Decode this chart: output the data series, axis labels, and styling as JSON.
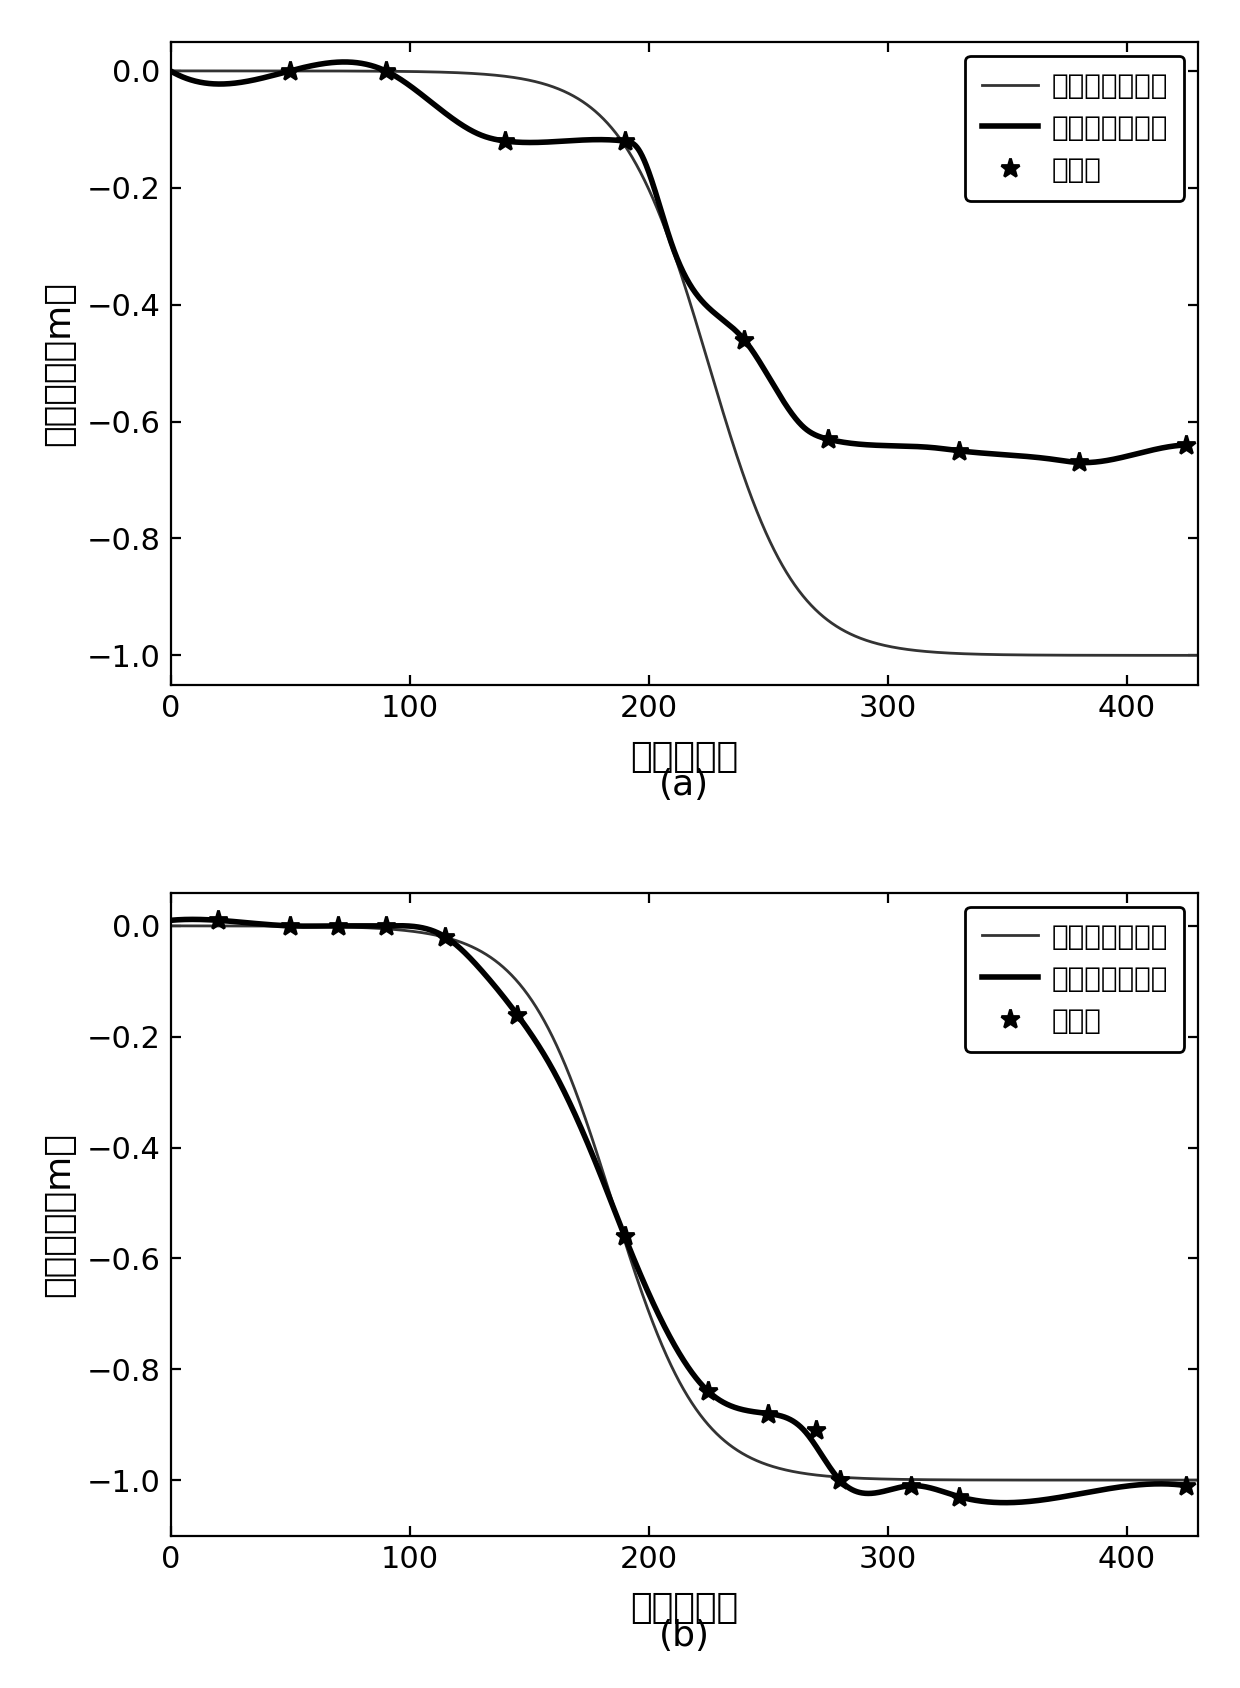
{
  "subplot_a": {
    "title": "(a)",
    "xlabel": "时间（天）",
    "ylabel": "时序沉降（m）",
    "xlim": [
      0,
      430
    ],
    "ylim": [
      -1.05,
      0.05
    ],
    "yticks": [
      0.0,
      -0.2,
      -0.4,
      -0.6,
      -0.8,
      -1.0
    ],
    "xticks": [
      0,
      100,
      200,
      300,
      400
    ],
    "sim_k": 0.055,
    "sim_mid": 225,
    "sim_max": -1.0,
    "calc_ctrl_x": [
      0,
      50,
      90,
      130,
      140,
      165,
      190,
      195,
      210,
      240,
      265,
      275,
      320,
      330,
      370,
      380,
      415,
      425
    ],
    "calc_ctrl_y": [
      0.0,
      0.0,
      0.0,
      -0.11,
      -0.12,
      -0.12,
      -0.12,
      -0.13,
      -0.3,
      -0.46,
      -0.61,
      -0.63,
      -0.645,
      -0.65,
      -0.665,
      -0.67,
      -0.645,
      -0.64
    ],
    "obs_x": [
      50,
      90,
      140,
      190,
      240,
      275,
      330,
      380,
      425
    ],
    "obs_y": [
      0.0,
      0.0,
      -0.12,
      -0.12,
      -0.46,
      -0.63,
      -0.65,
      -0.67,
      -0.64
    ]
  },
  "subplot_b": {
    "title": "(b)",
    "xlabel": "时间（天）",
    "ylabel": "时序沉降（m）",
    "xlim": [
      0,
      430
    ],
    "ylim": [
      -1.1,
      0.06
    ],
    "yticks": [
      0.0,
      -0.2,
      -0.4,
      -0.6,
      -0.8,
      -1.0
    ],
    "xticks": [
      0,
      100,
      200,
      300,
      400
    ],
    "sim_k": 0.055,
    "sim_mid": 185,
    "sim_max": -1.0,
    "calc_ctrl_x": [
      0,
      20,
      50,
      70,
      90,
      115,
      130,
      145,
      160,
      180,
      190,
      210,
      225,
      250,
      265,
      280,
      310,
      330,
      380,
      425
    ],
    "calc_ctrl_y": [
      0.01,
      0.01,
      0.0,
      0.0,
      0.0,
      -0.02,
      -0.08,
      -0.16,
      -0.26,
      -0.45,
      -0.56,
      -0.75,
      -0.84,
      -0.88,
      -0.91,
      -1.0,
      -1.01,
      -1.03,
      -1.025,
      -1.01
    ],
    "obs_x": [
      20,
      50,
      70,
      90,
      115,
      145,
      190,
      225,
      250,
      270,
      280,
      310,
      330,
      425
    ],
    "obs_y": [
      0.01,
      0.0,
      0.0,
      0.0,
      -0.02,
      -0.16,
      -0.56,
      -0.84,
      -0.88,
      -0.91,
      -1.0,
      -1.01,
      -1.03,
      -1.01
    ]
  },
  "legend_labels": [
    "模拟的沉降曲线",
    "计算的沉降曲线",
    "观测点"
  ],
  "thin_line_color": "#333333",
  "thick_line_color": "#000000",
  "background_color": "#ffffff",
  "fig_width": 6.2,
  "fig_height": 8.44,
  "dpi": 200
}
